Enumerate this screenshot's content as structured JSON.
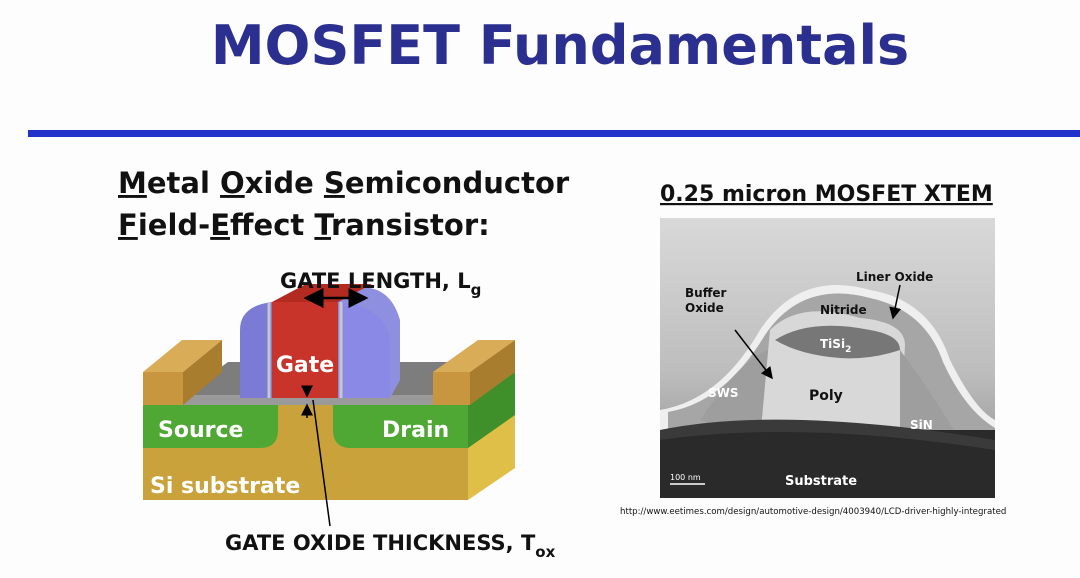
{
  "header": {
    "title": "MOSFET Fundamentals"
  },
  "left": {
    "heading_lines": [
      "Metal Oxide Semiconductor",
      "Field-Effect Transistor:"
    ],
    "diagram": {
      "gate_length": {
        "text": "GATE LENGTH, L",
        "subscript": "g"
      },
      "gate": "Gate",
      "source": "Source",
      "drain": "Drain",
      "substrate": "Si substrate",
      "oxide_thickness": {
        "text": "GATE OXIDE THICKNESS, T",
        "subscript": "ox"
      }
    }
  },
  "right": {
    "title": "0.25 micron MOSFET XTEM",
    "image_labels": {
      "buffer_oxide": [
        "Buffer",
        "Oxide"
      ],
      "liner_oxide": "Liner Oxide",
      "nitride": "Nitride",
      "tisi2": {
        "text": "TiSi",
        "subscript": "2"
      },
      "sws": "SWS",
      "poly": "Poly",
      "sin": "SiN",
      "substrate": "Substrate",
      "scale_bar": "100 nm"
    },
    "source_url": "http://www.eetimes.com/design/automotive-design/4003940/LCD-driver-highly-integrated"
  }
}
